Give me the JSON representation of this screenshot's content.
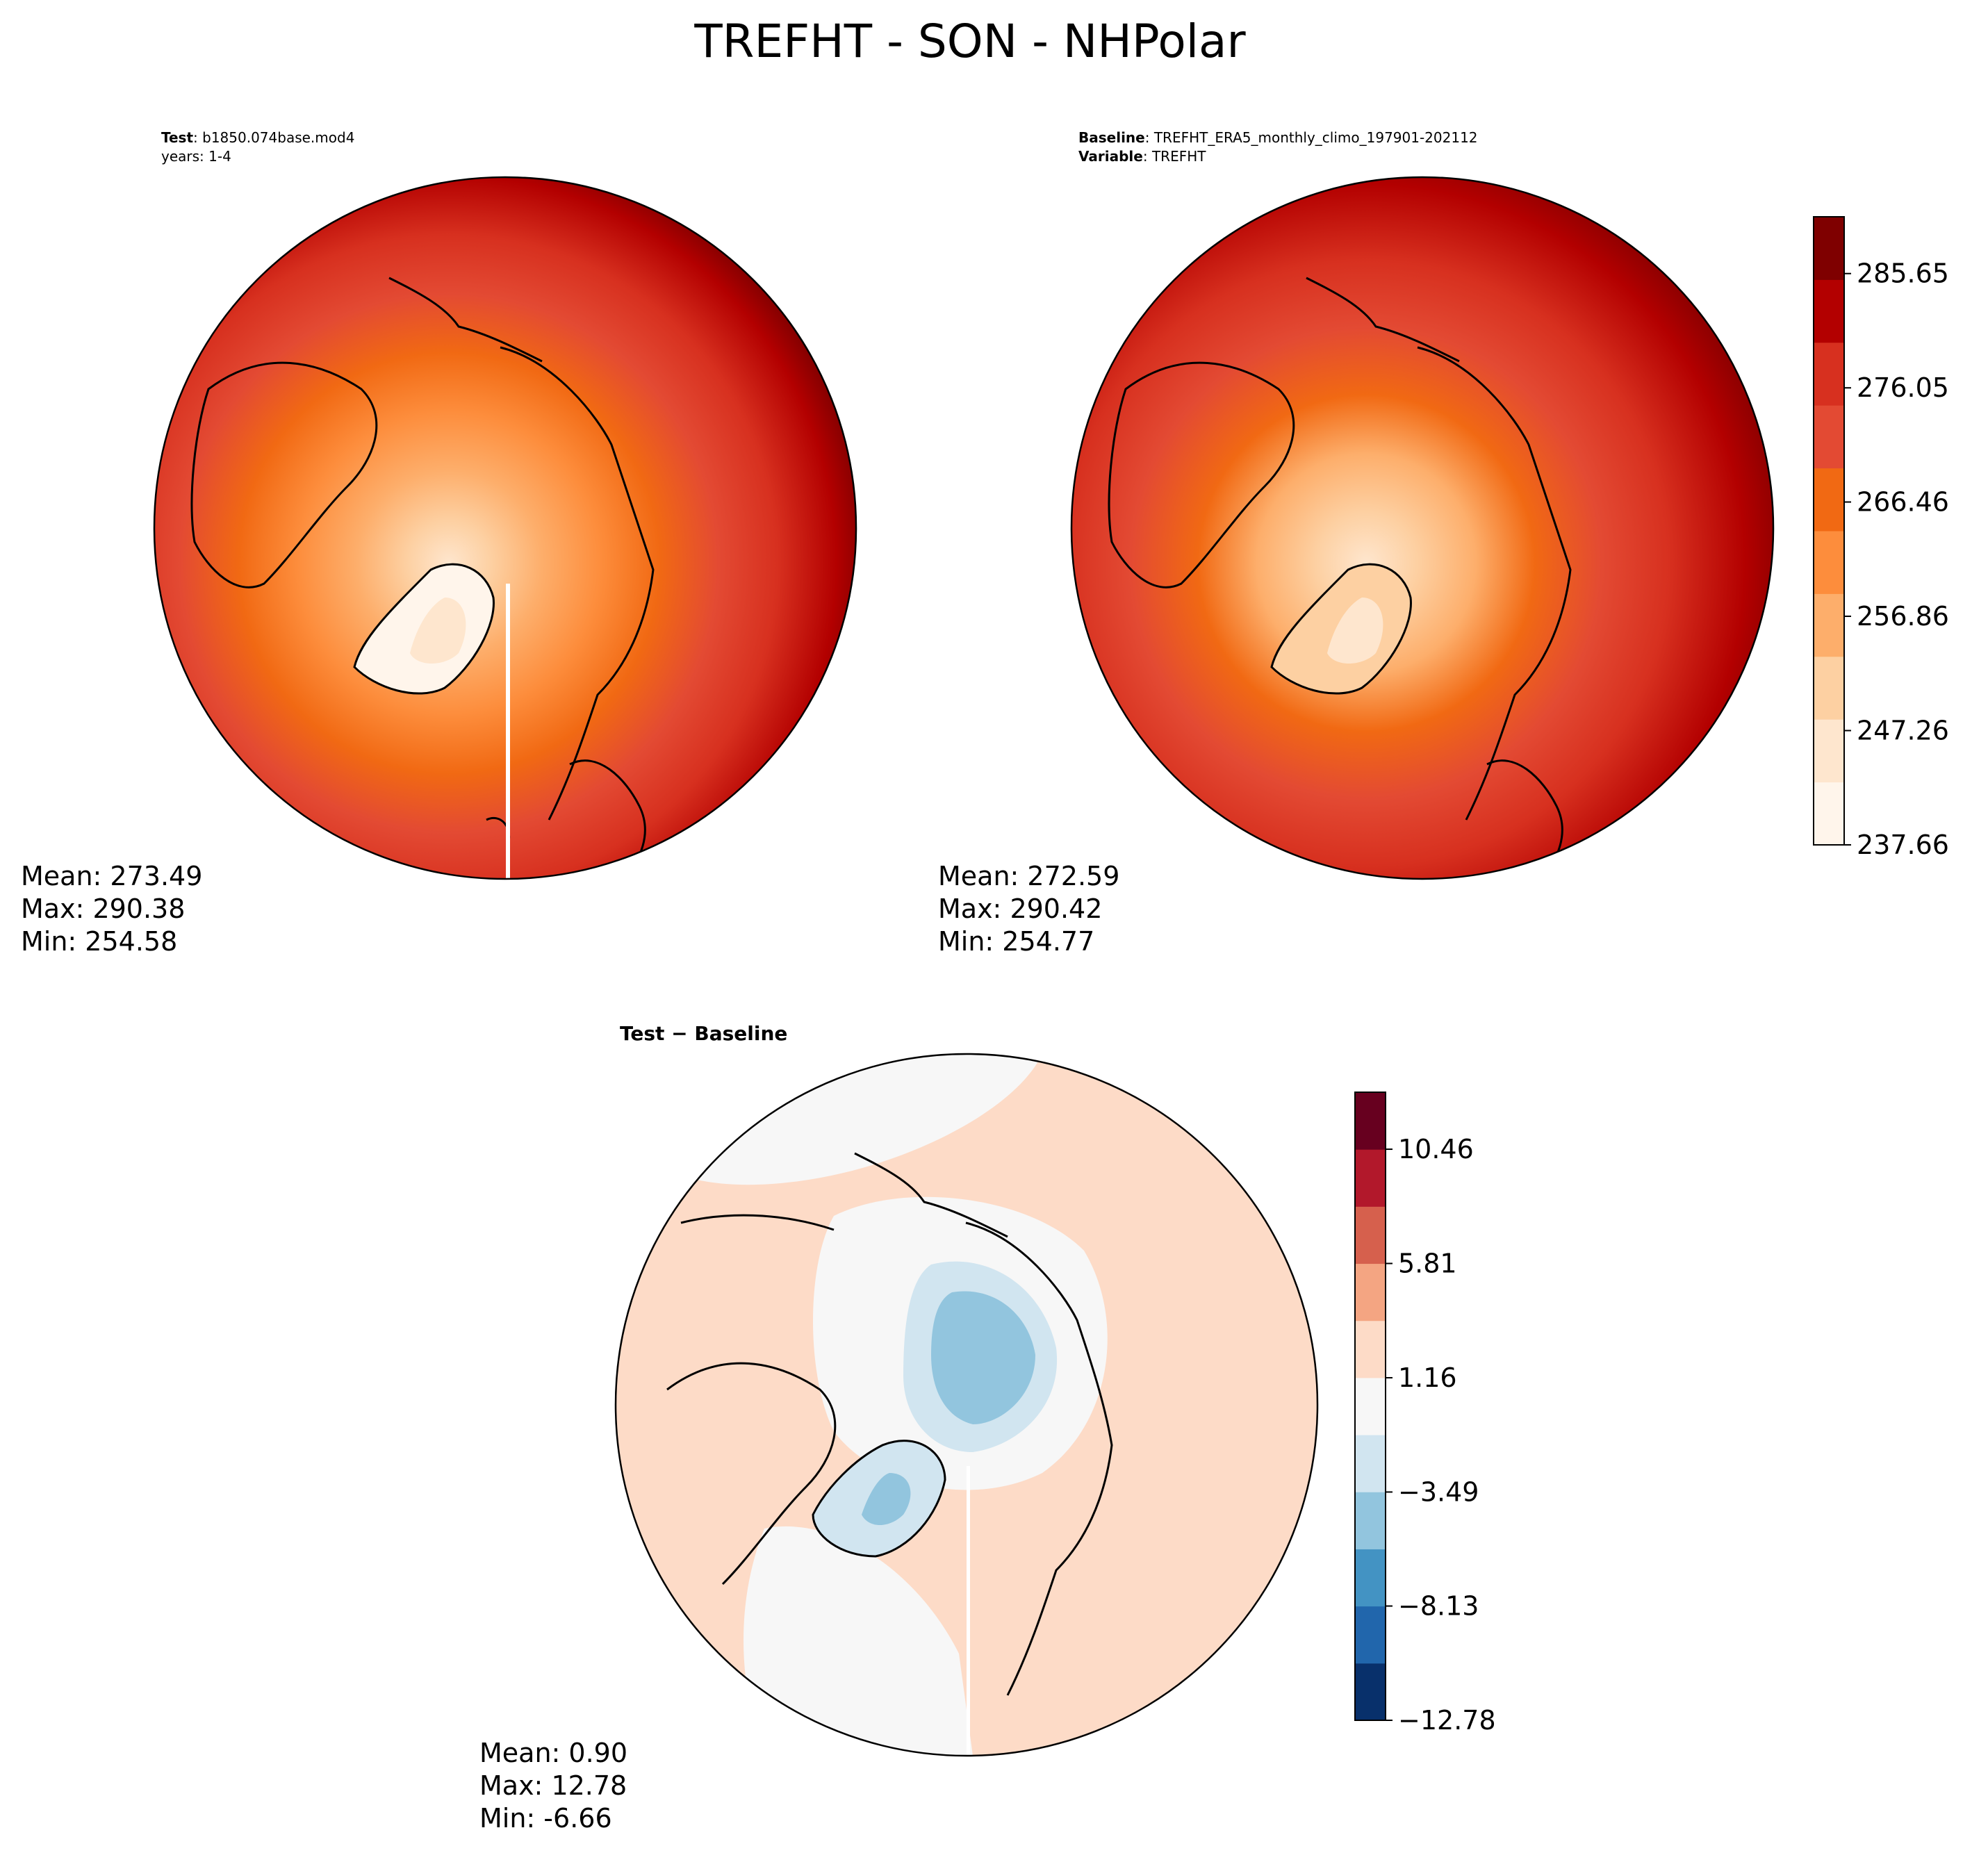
{
  "figure": {
    "title": "TREFHT - SON - NHPolar"
  },
  "panels": {
    "test": {
      "label_bold": "Test",
      "label_value": "b1850.074base.mod4",
      "sub_label": "years: 1-4",
      "stats": {
        "mean": "Mean: 273.49",
        "max": "Max: 290.38",
        "min": "Min: 254.58"
      }
    },
    "baseline": {
      "label_bold": "Baseline",
      "label_value": "TREFHT_ERA5_monthly_climo_197901-202112",
      "sub_label_bold": "Variable",
      "sub_label_value": "TREFHT",
      "stats": {
        "mean": "Mean: 272.59",
        "max": "Max: 290.42",
        "min": "Min: 254.77"
      }
    },
    "diff": {
      "title": "Test − Baseline",
      "stats": {
        "mean": "Mean:  0.90",
        "max": "Max: 12.78",
        "min": "Min: -6.66"
      }
    }
  },
  "colormaps": {
    "reds": [
      "#fff5eb",
      "#fee6ce",
      "#fdd0a2",
      "#fdae6b",
      "#fd8d3c",
      "#f16913",
      "#e34a33",
      "#d7301f",
      "#b30000",
      "#7f0000"
    ],
    "rdbu": [
      "#08306b",
      "#2166ac",
      "#4393c3",
      "#92c5de",
      "#d1e5f0",
      "#f7f7f7",
      "#fddbc7",
      "#f4a582",
      "#d6604d",
      "#b2182b",
      "#67001f"
    ]
  },
  "chart_data": [
    {
      "type": "heatmap",
      "name_hint": "test",
      "projection": "north polar stereographic",
      "value_range": [
        237.66,
        290.38
      ],
      "stats": {
        "mean": 273.49,
        "max": 290.38,
        "min": 254.58
      }
    },
    {
      "type": "heatmap",
      "name_hint": "baseline",
      "projection": "north polar stereographic",
      "value_range": [
        237.66,
        290.42
      ],
      "colorbar": {
        "ticks": [
          "285.65",
          "276.05",
          "266.46",
          "256.86",
          "247.26",
          "237.66"
        ],
        "min": 237.66,
        "max": 290.42,
        "levels": 11
      },
      "stats": {
        "mean": 272.59,
        "max": 290.42,
        "min": 254.77
      }
    },
    {
      "type": "heatmap",
      "name_hint": "difference",
      "projection": "north polar stereographic",
      "value_range": [
        -12.78,
        12.78
      ],
      "colorbar": {
        "ticks": [
          "10.46",
          "5.81",
          "1.16",
          "−3.49",
          "−8.13",
          "−12.78"
        ],
        "min": -12.78,
        "max": 12.78,
        "levels": 11
      },
      "stats": {
        "mean": 0.9,
        "max": 12.78,
        "min": -6.66
      }
    }
  ]
}
